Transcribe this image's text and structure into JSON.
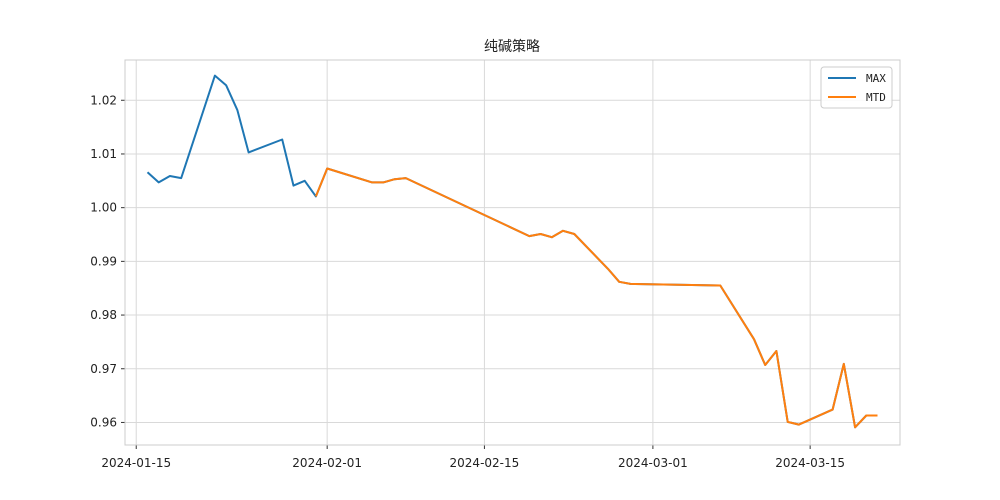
{
  "chart_data": {
    "type": "line",
    "title": "纯碱策略",
    "xlabel": "",
    "ylabel": "",
    "x_range": [
      "2024-01-14",
      "2024-03-23"
    ],
    "ylim": [
      0.9558,
      1.0275
    ],
    "x_ticks": [
      "2024-01-15",
      "2024-02-01",
      "2024-02-15",
      "2024-03-01",
      "2024-03-15"
    ],
    "y_ticks": [
      0.96,
      0.97,
      0.98,
      0.99,
      1.0,
      1.01,
      1.02
    ],
    "y_tick_labels": [
      "0.96",
      "0.97",
      "0.98",
      "0.99",
      "1.00",
      "1.01",
      "1.02"
    ],
    "grid": true,
    "legend_position": "top-right",
    "series": [
      {
        "name": "MAX",
        "color": "#1f77b4",
        "x": [
          "2024-01-16",
          "2024-01-17",
          "2024-01-18",
          "2024-01-19",
          "2024-01-22",
          "2024-01-23",
          "2024-01-24",
          "2024-01-25",
          "2024-01-28",
          "2024-01-29",
          "2024-01-30",
          "2024-01-31",
          "2024-02-01",
          "2024-02-05",
          "2024-02-06",
          "2024-02-07",
          "2024-02-08",
          "2024-02-19",
          "2024-02-20",
          "2024-02-21",
          "2024-02-22",
          "2024-02-23",
          "2024-02-26",
          "2024-02-27",
          "2024-02-28",
          "2024-03-07",
          "2024-03-10",
          "2024-03-11",
          "2024-03-12",
          "2024-03-13",
          "2024-03-14",
          "2024-03-17",
          "2024-03-18",
          "2024-03-19",
          "2024-03-20",
          "2024-03-21"
        ],
        "y": [
          1.0066,
          1.0047,
          1.0059,
          1.0055,
          1.0246,
          1.0228,
          1.0182,
          1.0103,
          1.0127,
          1.0041,
          1.005,
          1.0021,
          1.0073,
          1.0047,
          1.0047,
          1.0053,
          1.0055,
          0.9947,
          0.9951,
          0.9945,
          0.9957,
          0.9951,
          0.9886,
          0.9862,
          0.9858,
          0.9855,
          0.9755,
          0.9707,
          0.9733,
          0.9601,
          0.9596,
          0.9624,
          0.9709,
          0.9591,
          0.9613,
          0.9613
        ]
      },
      {
        "name": "MTD",
        "color": "#ff7f0e",
        "x": [
          "2024-01-31",
          "2024-02-01",
          "2024-02-05",
          "2024-02-06",
          "2024-02-07",
          "2024-02-08",
          "2024-02-19",
          "2024-02-20",
          "2024-02-21",
          "2024-02-22",
          "2024-02-23",
          "2024-02-26",
          "2024-02-27",
          "2024-02-28",
          "2024-03-07",
          "2024-03-10",
          "2024-03-11",
          "2024-03-12",
          "2024-03-13",
          "2024-03-14",
          "2024-03-17",
          "2024-03-18",
          "2024-03-19",
          "2024-03-20",
          "2024-03-21"
        ],
        "y": [
          1.0021,
          1.0073,
          1.0047,
          1.0047,
          1.0053,
          1.0055,
          0.9947,
          0.9951,
          0.9945,
          0.9957,
          0.9951,
          0.9886,
          0.9862,
          0.9858,
          0.9855,
          0.9755,
          0.9707,
          0.9733,
          0.9601,
          0.9596,
          0.9624,
          0.9709,
          0.9591,
          0.9613,
          0.9613
        ]
      }
    ]
  }
}
